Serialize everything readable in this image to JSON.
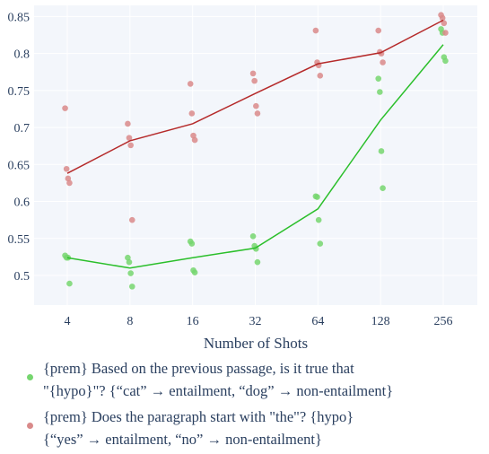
{
  "chart_data": {
    "type": "scatter",
    "xlabel": "Number of Shots",
    "x_scale": "log2",
    "x_ticks": [
      "4",
      "8",
      "16",
      "32",
      "64",
      "128",
      "256"
    ],
    "x_values": [
      4,
      8,
      16,
      32,
      64,
      128,
      256
    ],
    "y_ticks": [
      "0.5",
      "0.55",
      "0.6",
      "0.65",
      "0.7",
      "0.75",
      "0.8",
      "0.85"
    ],
    "y_tick_values": [
      0.5,
      0.55,
      0.6,
      0.65,
      0.7,
      0.75,
      0.8,
      0.85
    ],
    "ylim": [
      0.46,
      0.865
    ],
    "grid": true,
    "legend_position": "bottom",
    "series": [
      {
        "label_lines": [
          "{prem} Based on the previous passage, is it true that",
          "\"{hypo}\"? {“cat” → entailment, “dog” → non-entailment}"
        ],
        "color": "#76d66f",
        "line_color": "#2bbf2b",
        "points": [
          [
            4,
            0.527
          ],
          [
            4,
            0.524
          ],
          [
            4,
            0.524
          ],
          [
            4,
            0.489
          ],
          [
            8,
            0.524
          ],
          [
            8,
            0.518
          ],
          [
            8,
            0.503
          ],
          [
            8,
            0.485
          ],
          [
            16,
            0.546
          ],
          [
            16,
            0.543
          ],
          [
            16,
            0.507
          ],
          [
            16,
            0.504
          ],
          [
            32,
            0.553
          ],
          [
            32,
            0.54
          ],
          [
            32,
            0.536
          ],
          [
            32,
            0.518
          ],
          [
            64,
            0.607
          ],
          [
            64,
            0.606
          ],
          [
            64,
            0.575
          ],
          [
            64,
            0.543
          ],
          [
            128,
            0.766
          ],
          [
            128,
            0.748
          ],
          [
            128,
            0.668
          ],
          [
            128,
            0.618
          ],
          [
            256,
            0.833
          ],
          [
            256,
            0.828
          ],
          [
            256,
            0.795
          ],
          [
            256,
            0.79
          ]
        ],
        "mean_line": [
          [
            4,
            0.524
          ],
          [
            8,
            0.51
          ],
          [
            16,
            0.524
          ],
          [
            32,
            0.537
          ],
          [
            64,
            0.59
          ],
          [
            128,
            0.71
          ],
          [
            256,
            0.812
          ]
        ]
      },
      {
        "label_lines": [
          "{prem} Does the paragraph start with \"the\"? {hypo}",
          "{“yes” → entailment, “no” → non-entailment}"
        ],
        "color": "#d98a8a",
        "line_color": "#b52a2a",
        "points": [
          [
            4,
            0.726
          ],
          [
            4,
            0.644
          ],
          [
            4,
            0.631
          ],
          [
            4,
            0.625
          ],
          [
            8,
            0.705
          ],
          [
            8,
            0.686
          ],
          [
            8,
            0.676
          ],
          [
            8,
            0.575
          ],
          [
            16,
            0.759
          ],
          [
            16,
            0.719
          ],
          [
            16,
            0.689
          ],
          [
            16,
            0.683
          ],
          [
            32,
            0.773
          ],
          [
            32,
            0.763
          ],
          [
            32,
            0.729
          ],
          [
            32,
            0.719
          ],
          [
            64,
            0.831
          ],
          [
            64,
            0.788
          ],
          [
            64,
            0.784
          ],
          [
            64,
            0.77
          ],
          [
            128,
            0.831
          ],
          [
            128,
            0.802
          ],
          [
            128,
            0.8
          ],
          [
            128,
            0.788
          ],
          [
            256,
            0.852
          ],
          [
            256,
            0.848
          ],
          [
            256,
            0.841
          ],
          [
            256,
            0.828
          ]
        ],
        "mean_line": [
          [
            4,
            0.638
          ],
          [
            8,
            0.682
          ],
          [
            16,
            0.705
          ],
          [
            32,
            0.746
          ],
          [
            64,
            0.786
          ],
          [
            128,
            0.801
          ],
          [
            256,
            0.845
          ]
        ]
      }
    ]
  }
}
